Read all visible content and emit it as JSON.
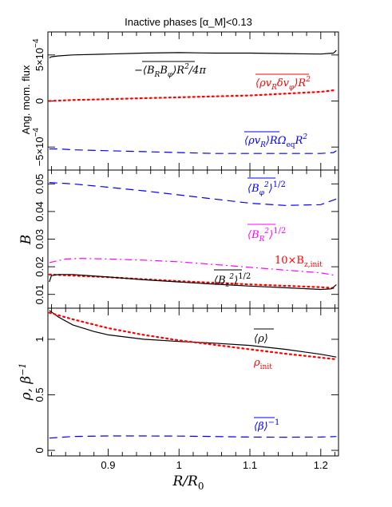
{
  "title": "Inactive phases [α_M]<0.13",
  "xlabel": "R/R0",
  "xticks": [
    "0.9",
    "1",
    "1.1",
    "1.2"
  ],
  "colors": {
    "black": "#000000",
    "red": "#ff0000",
    "blue": "#0000ff",
    "magenta": "#ff00ff"
  },
  "chart_data": [
    {
      "type": "line",
      "panel": "top",
      "ylabel": "Ang. mom. flux",
      "xlim": [
        0.815,
        1.225
      ],
      "ylim": [
        -0.00075,
        0.00075
      ],
      "yticks": [
        {
          "value": -0.0005,
          "label": "−5×10^−4"
        },
        {
          "value": 0,
          "label": "0"
        },
        {
          "value": 0.0005,
          "label": "5×10^−4"
        }
      ],
      "series": [
        {
          "name": "−⟨B_R B_φ⟩R²/4π",
          "color": "#000000",
          "style": "solid",
          "x": [
            0.817,
            0.82,
            0.83,
            0.85,
            0.9,
            0.95,
            1.0,
            1.05,
            1.1,
            1.15,
            1.2,
            1.218,
            1.222
          ],
          "y": [
            0.00047,
            0.00048,
            0.00049,
            0.0005,
            0.00051,
            0.00052,
            0.000525,
            0.00052,
            0.00052,
            0.000515,
            0.00051,
            0.00052,
            0.00055
          ]
        },
        {
          "name": "⟨ρ v_R δv_φ⟩R²",
          "color": "#ff0000",
          "style": "dotted",
          "x": [
            0.817,
            0.85,
            0.9,
            0.95,
            1.0,
            1.05,
            1.1,
            1.15,
            1.2,
            1.222
          ],
          "y": [
            0.0,
            1e-05,
            2e-05,
            3e-05,
            4e-05,
            5e-05,
            6e-05,
            8e-05,
            0.0001,
            0.00012
          ]
        },
        {
          "name": "⟨ρ v_R⟩RΩ_eq R²",
          "color": "#0000ff",
          "style": "dashed",
          "x": [
            0.817,
            0.83,
            0.85,
            0.9,
            0.95,
            1.0,
            1.05,
            1.1,
            1.15,
            1.2,
            1.218,
            1.222
          ],
          "y": [
            -0.00052,
            -0.00052,
            -0.00053,
            -0.00054,
            -0.00055,
            -0.00056,
            -0.00057,
            -0.00057,
            -0.00057,
            -0.00057,
            -0.00056,
            -0.00054
          ]
        }
      ],
      "annotations": [
        {
          "text": "−⟨B_R B_φ⟩R²/4π",
          "color": "#000000"
        },
        {
          "text": "⟨ρ v_R δv_φ⟩R²",
          "color": "#ff0000"
        },
        {
          "text": "⟨ρ v_R⟩RΩ_eq R²",
          "color": "#0000ff"
        }
      ]
    },
    {
      "type": "line",
      "panel": "middle",
      "ylabel": "B",
      "xlim": [
        0.815,
        1.225
      ],
      "ylim": [
        0.005,
        0.055
      ],
      "yticks": [
        {
          "value": 0.01,
          "label": "0.01"
        },
        {
          "value": 0.02,
          "label": "0.02"
        },
        {
          "value": 0.03,
          "label": "0.03"
        },
        {
          "value": 0.04,
          "label": "0.04"
        },
        {
          "value": 0.05,
          "label": "0.05"
        }
      ],
      "series": [
        {
          "name": "⟨B_φ²⟩^1/2",
          "color": "#0000ff",
          "style": "dashed",
          "x": [
            0.817,
            0.85,
            0.9,
            0.95,
            1.0,
            1.05,
            1.1,
            1.15,
            1.2,
            1.222
          ],
          "y": [
            0.0505,
            0.05,
            0.0488,
            0.0475,
            0.046,
            0.0445,
            0.043,
            0.0422,
            0.0425,
            0.0445
          ]
        },
        {
          "name": "⟨B_R²⟩^1/2",
          "color": "#ff00ff",
          "style": "dashdot",
          "x": [
            0.817,
            0.84,
            0.86,
            0.9,
            0.95,
            1.0,
            1.05,
            1.1,
            1.15,
            1.2,
            1.222
          ],
          "y": [
            0.0215,
            0.0228,
            0.023,
            0.0228,
            0.0224,
            0.0218,
            0.0208,
            0.0198,
            0.0188,
            0.0178,
            0.0168
          ]
        },
        {
          "name": "10×B_z,init",
          "color": "#ff0000",
          "style": "dotted",
          "x": [
            0.817,
            0.85,
            0.9,
            0.95,
            1.0,
            1.05,
            1.1,
            1.15,
            1.2,
            1.222
          ],
          "y": [
            0.0172,
            0.0168,
            0.0162,
            0.0155,
            0.0148,
            0.0142,
            0.0136,
            0.0131,
            0.0126,
            0.0122
          ]
        },
        {
          "name": "⟨B_z²⟩^1/2",
          "color": "#000000",
          "style": "solid",
          "x": [
            0.817,
            0.82,
            0.83,
            0.85,
            0.9,
            0.95,
            1.0,
            1.05,
            1.1,
            1.15,
            1.2,
            1.215,
            1.222
          ],
          "y": [
            0.0145,
            0.0168,
            0.0172,
            0.0172,
            0.0163,
            0.0153,
            0.0145,
            0.0137,
            0.013,
            0.0124,
            0.0118,
            0.012,
            0.0135
          ]
        }
      ],
      "annotations": [
        {
          "text": "⟨B_φ²⟩^1/2",
          "color": "#0000ff"
        },
        {
          "text": "⟨B_R²⟩^1/2",
          "color": "#ff00ff"
        },
        {
          "text": "10×B_z,init",
          "color": "#ff0000"
        },
        {
          "text": "⟨B_z²⟩^1/2",
          "color": "#000000"
        }
      ]
    },
    {
      "type": "line",
      "panel": "bottom",
      "ylabel": "ρ, β^−1",
      "xlim": [
        0.815,
        1.225
      ],
      "ylim": [
        -0.05,
        1.28
      ],
      "yticks": [
        {
          "value": 0,
          "label": "0"
        },
        {
          "value": 0.5,
          "label": "0.5"
        },
        {
          "value": 1,
          "label": "1"
        }
      ],
      "series": [
        {
          "name": "⟨ρ⟩",
          "color": "#000000",
          "style": "solid",
          "x": [
            0.817,
            0.83,
            0.85,
            0.88,
            0.9,
            0.95,
            1.0,
            1.05,
            1.1,
            1.15,
            1.2,
            1.222
          ],
          "y": [
            1.26,
            1.2,
            1.13,
            1.07,
            1.04,
            1.0,
            0.98,
            0.965,
            0.945,
            0.91,
            0.865,
            0.84
          ]
        },
        {
          "name": "ρ_init",
          "color": "#ff0000",
          "style": "dotted",
          "x": [
            0.817,
            0.85,
            0.9,
            0.95,
            1.0,
            1.05,
            1.1,
            1.15,
            1.2,
            1.222
          ],
          "y": [
            1.24,
            1.18,
            1.1,
            1.04,
            0.99,
            0.95,
            0.91,
            0.87,
            0.835,
            0.82
          ]
        },
        {
          "name": "⟨β⟩^−1",
          "color": "#0000ff",
          "style": "dashed",
          "x": [
            0.817,
            0.85,
            0.9,
            0.95,
            1.0,
            1.05,
            1.1,
            1.15,
            1.2,
            1.222
          ],
          "y": [
            0.11,
            0.125,
            0.13,
            0.13,
            0.128,
            0.125,
            0.12,
            0.118,
            0.12,
            0.125
          ]
        }
      ],
      "annotations": [
        {
          "text": "⟨ρ⟩",
          "color": "#000000"
        },
        {
          "text": "ρ_init",
          "color": "#ff0000"
        },
        {
          "text": "⟨β⟩^−1",
          "color": "#0000ff"
        }
      ]
    }
  ]
}
